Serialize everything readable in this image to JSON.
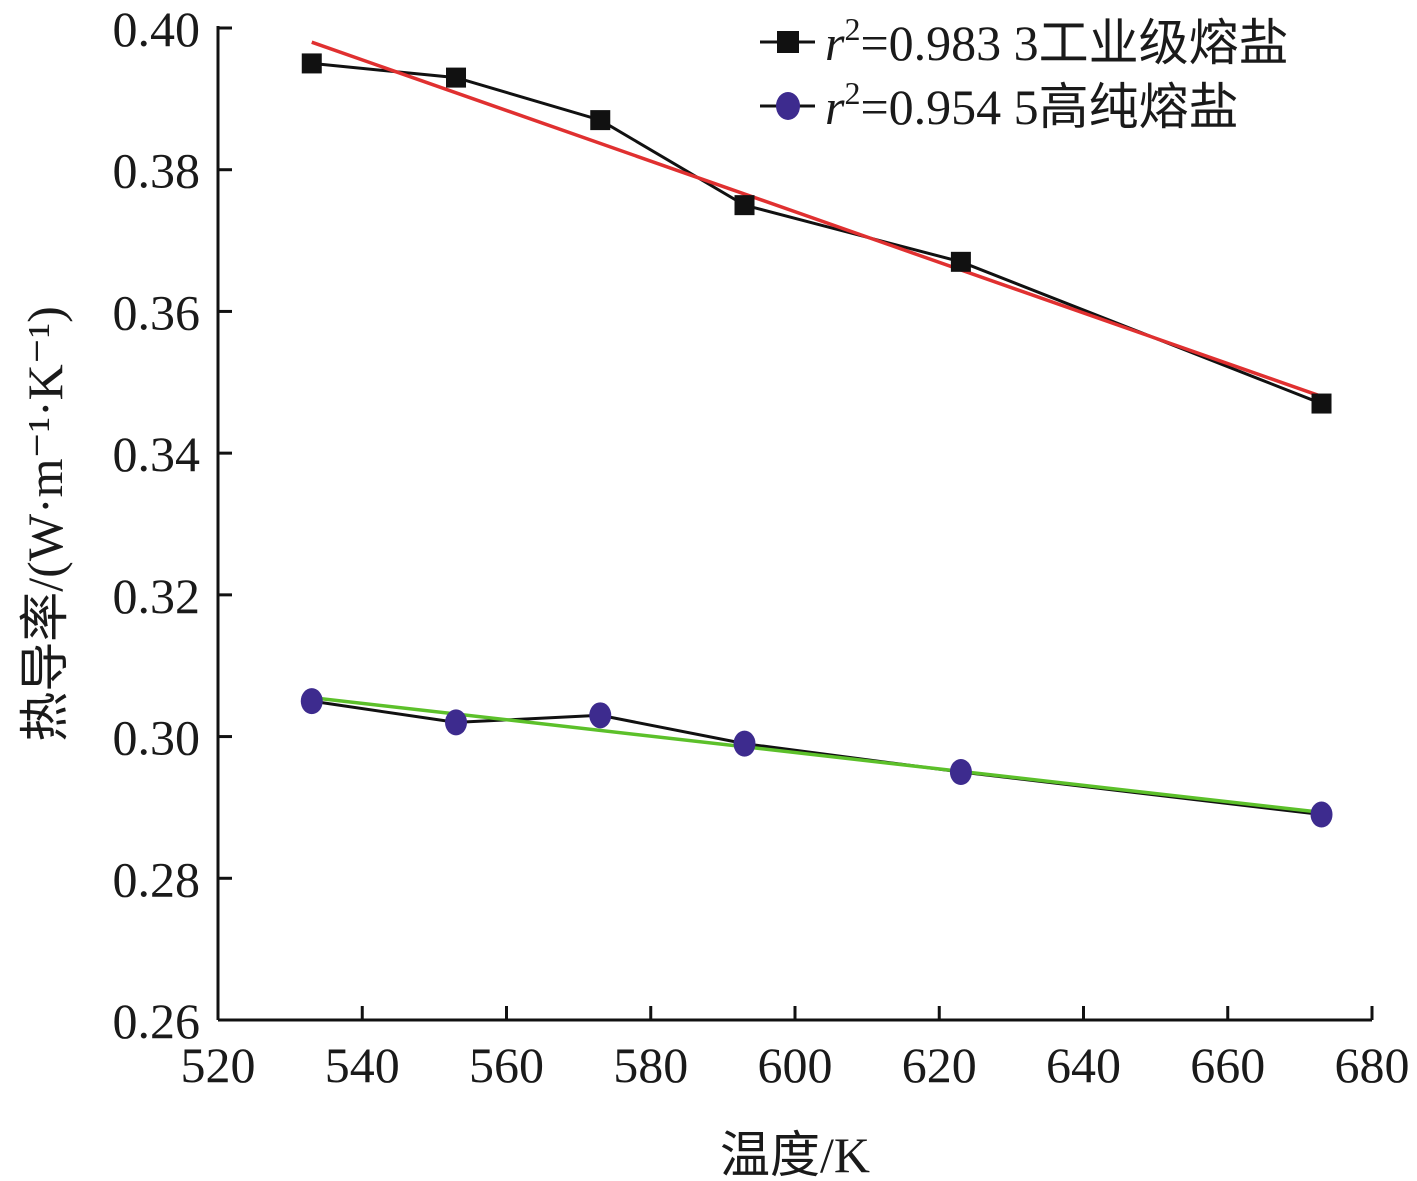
{
  "chart_data": {
    "type": "line",
    "xlabel": "温度/K",
    "ylabel": "热导率/(W·m⁻¹·K⁻¹)",
    "xlim": [
      520,
      680
    ],
    "ylim": [
      0.26,
      0.4
    ],
    "xticks": [
      "520",
      "540",
      "560",
      "580",
      "600",
      "620",
      "640",
      "660",
      "680"
    ],
    "yticks": [
      "0.26",
      "0.28",
      "0.30",
      "0.32",
      "0.34",
      "0.36",
      "0.38",
      "0.40"
    ],
    "grid": false,
    "legend_position": "top-right",
    "series": [
      {
        "name": "r²=0.983 3工业级熔盐",
        "label_main": "r",
        "label_sup": "2",
        "label_rest": "=0.983 3工业级熔盐",
        "marker": "square",
        "line_color": "#111111",
        "marker_color": "#111111",
        "x": [
          533,
          553,
          573,
          593,
          623,
          673
        ],
        "y": [
          0.395,
          0.393,
          0.387,
          0.375,
          0.367,
          0.347
        ],
        "fit": {
          "x": [
            533,
            673
          ],
          "y": [
            0.398,
            0.348
          ],
          "color": "#e03030"
        }
      },
      {
        "name": "r²=0.954 5高纯熔盐",
        "label_main": "r",
        "label_sup": "2",
        "label_rest": "=0.954 5高纯熔盐",
        "marker": "circle",
        "line_color": "#111111",
        "marker_color": "#3d2b8e",
        "x": [
          533,
          553,
          573,
          593,
          623,
          673
        ],
        "y": [
          0.305,
          0.302,
          0.303,
          0.299,
          0.295,
          0.289
        ],
        "fit": {
          "x": [
            533,
            673
          ],
          "y": [
            0.3055,
            0.2893
          ],
          "color": "#5cc02a"
        }
      }
    ]
  }
}
